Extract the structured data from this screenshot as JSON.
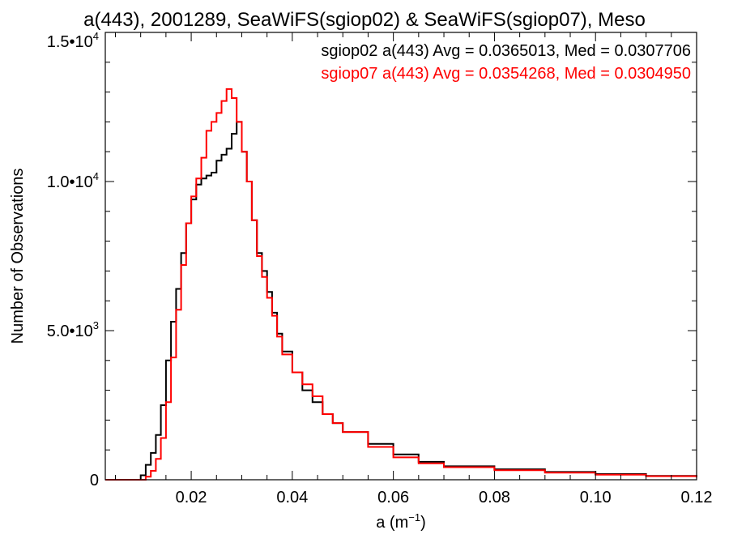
{
  "chart_data": {
    "type": "line",
    "title": "a(443), 2001289, SeaWiFS(sgiop02) & SeaWiFS(sgiop07), Meso",
    "xlabel": "a (m",
    "xlabel_sup": "−1",
    "xlabel_close": ")",
    "ylabel": "Number of Observations",
    "xlim": [
      0.003,
      0.12
    ],
    "ylim": [
      0,
      15000
    ],
    "grid": false,
    "step_histogram": true,
    "x_ticks": [
      {
        "value": 0.02,
        "label": "0.02"
      },
      {
        "value": 0.04,
        "label": "0.04"
      },
      {
        "value": 0.06,
        "label": "0.06"
      },
      {
        "value": 0.08,
        "label": "0.08"
      },
      {
        "value": 0.1,
        "label": "0.10"
      },
      {
        "value": 0.12,
        "label": "0.12"
      }
    ],
    "y_ticks": [
      {
        "value": 0,
        "mantissa": "0",
        "exp": ""
      },
      {
        "value": 5000,
        "mantissa": "5.0•10",
        "exp": "3"
      },
      {
        "value": 10000,
        "mantissa": "1.0•10",
        "exp": "4"
      },
      {
        "value": 15000,
        "mantissa": "1.5•10",
        "exp": "4"
      }
    ],
    "annotations": [
      {
        "text": "sgiop02 a(443) Avg = 0.0365013, Med = 0.0307706",
        "color": "#000000"
      },
      {
        "text": "sgiop07 a(443) Avg = 0.0354268, Med = 0.0304950",
        "color": "#ff0000"
      }
    ],
    "series": [
      {
        "color": "#000000",
        "x": [
          0.003,
          0.009,
          0.01,
          0.011,
          0.012,
          0.013,
          0.014,
          0.015,
          0.016,
          0.017,
          0.018,
          0.019,
          0.02,
          0.021,
          0.022,
          0.023,
          0.024,
          0.025,
          0.026,
          0.027,
          0.028,
          0.029,
          0.03,
          0.031,
          0.032,
          0.033,
          0.034,
          0.035,
          0.036,
          0.037,
          0.038,
          0.04,
          0.042,
          0.044,
          0.046,
          0.048,
          0.05,
          0.055,
          0.06,
          0.065,
          0.07,
          0.08,
          0.09,
          0.1,
          0.11,
          0.12
        ],
        "y": [
          0,
          0,
          150,
          500,
          900,
          1500,
          2500,
          4000,
          5300,
          6400,
          7600,
          8600,
          9400,
          9900,
          10100,
          10200,
          10300,
          10700,
          10900,
          11100,
          11600,
          12000,
          11000,
          10000,
          8700,
          7600,
          7000,
          6300,
          5600,
          4900,
          4300,
          3600,
          3000,
          2600,
          2200,
          1900,
          1600,
          1200,
          850,
          600,
          450,
          350,
          260,
          190,
          130,
          90
        ]
      },
      {
        "color": "#ff0000",
        "x": [
          0.003,
          0.01,
          0.011,
          0.012,
          0.013,
          0.014,
          0.015,
          0.016,
          0.017,
          0.018,
          0.019,
          0.02,
          0.021,
          0.022,
          0.023,
          0.024,
          0.025,
          0.026,
          0.027,
          0.028,
          0.029,
          0.03,
          0.031,
          0.032,
          0.033,
          0.034,
          0.035,
          0.036,
          0.037,
          0.038,
          0.04,
          0.042,
          0.044,
          0.046,
          0.048,
          0.05,
          0.055,
          0.06,
          0.065,
          0.07,
          0.08,
          0.09,
          0.1,
          0.11,
          0.12
        ],
        "y": [
          0,
          0,
          100,
          300,
          700,
          1400,
          2600,
          4100,
          5700,
          7200,
          8600,
          9500,
          10100,
          10800,
          11700,
          12000,
          12300,
          12700,
          13100,
          12800,
          12000,
          11000,
          10000,
          8700,
          7500,
          6800,
          6100,
          5500,
          4800,
          4200,
          3600,
          3200,
          2800,
          2200,
          1900,
          1600,
          1100,
          750,
          550,
          420,
          320,
          240,
          170,
          120,
          80
        ]
      }
    ]
  }
}
